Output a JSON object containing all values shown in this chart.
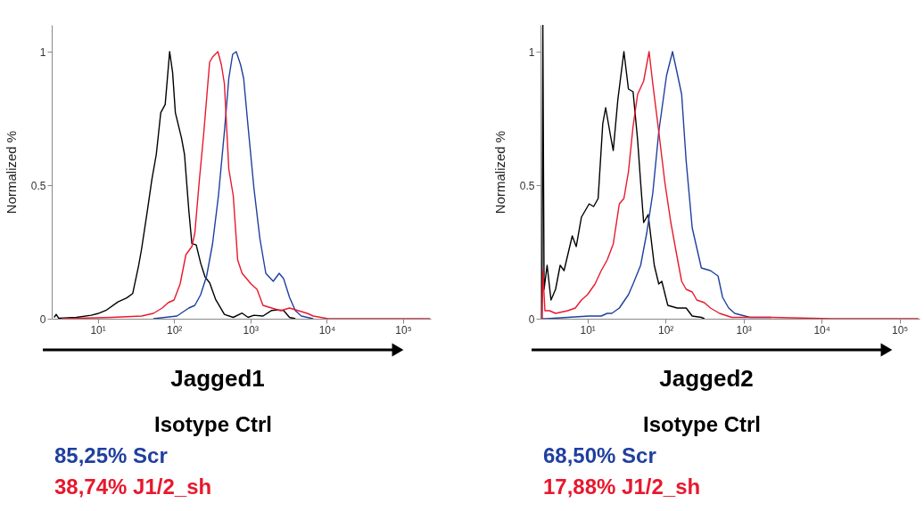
{
  "chart_data": [
    {
      "type": "line",
      "xlabel": "Jagged1",
      "ylabel": "Normalized %",
      "log": "x",
      "legend": "bottom",
      "xlim": [
        2.5,
        230000
      ],
      "ylim": [
        0,
        1.1
      ],
      "xticks": [
        {
          "value": 10,
          "label": "10¹"
        },
        {
          "value": 100,
          "label": "10²"
        },
        {
          "value": 1000,
          "label": "10³"
        },
        {
          "value": 10000,
          "label": "10⁴"
        },
        {
          "value": 100000,
          "label": "10⁵"
        }
      ],
      "yticks": [
        0,
        0.5,
        1
      ],
      "series": [
        {
          "name": "Isotype Ctrl",
          "color": "#000000",
          "x": [
            2.69,
            2.86,
            3.08,
            5.26,
            8.22,
            10,
            12.8,
            18.4,
            24.0,
            28.7,
            34.3,
            37.5,
            44.8,
            51.2,
            58.5,
            66.9,
            76.5,
            87.5,
            95.7,
            104,
            125,
            137,
            156,
            171,
            195,
            223,
            255,
            292,
            349,
            456,
            596,
            778,
            931,
            1110,
            1460,
            1900,
            2280,
            2720,
            3250,
            3880
          ],
          "values": [
            0.005,
            0.016,
            0.002,
            0.005,
            0.013,
            0.019,
            0.031,
            0.063,
            0.078,
            0.094,
            0.198,
            0.26,
            0.406,
            0.521,
            0.615,
            0.771,
            0.802,
            1.0,
            0.922,
            0.771,
            0.677,
            0.615,
            0.406,
            0.281,
            0.276,
            0.208,
            0.156,
            0.135,
            0.073,
            0.016,
            0.005,
            0.021,
            0.005,
            0.013,
            0.01,
            0.031,
            0.033,
            0.031,
            0.005,
            0
          ]
        },
        {
          "name": "85,25% Scr",
          "color": "#1f3f9f",
          "x": [
            53.6,
            109,
            156,
            187,
            223,
            267,
            319,
            381,
            456,
            521,
            585,
            651,
            745,
            815,
            931,
            1110,
            1330,
            1590,
            1990,
            2380,
            2720,
            3250,
            3880,
            4650,
            5550,
            6640
          ],
          "values": [
            0,
            0.01,
            0.04,
            0.05,
            0.09,
            0.16,
            0.28,
            0.46,
            0.7,
            0.9,
            0.99,
            1,
            0.95,
            0.9,
            0.72,
            0.49,
            0.3,
            0.17,
            0.14,
            0.17,
            0.15,
            0.08,
            0.03,
            0.01,
            0.005,
            0
          ]
        },
        {
          "name": "38,74% J1/2_sh",
          "color": "#e8182c",
          "x": [
            3.37,
            15.4,
            37.5,
            53.6,
            70.0,
            83.6,
            100,
            120,
            143,
            171,
            187,
            213,
            244,
            292,
            319,
            375,
            417,
            456,
            521,
            596,
            681,
            778,
            1020,
            1220,
            1460,
            1900,
            2480,
            3250,
            4250,
            5550,
            6640,
            10400,
            225000
          ],
          "values": [
            0,
            0.005,
            0.01,
            0.02,
            0.04,
            0.06,
            0.07,
            0.13,
            0.24,
            0.27,
            0.32,
            0.51,
            0.69,
            0.96,
            0.98,
            1,
            0.95,
            0.88,
            0.56,
            0.46,
            0.22,
            0.17,
            0.13,
            0.11,
            0.05,
            0.04,
            0.03,
            0.04,
            0.03,
            0.02,
            0.01,
            0,
            0
          ]
        }
      ]
    },
    {
      "type": "line",
      "xlabel": "Jagged2",
      "ylabel": "Normalized %",
      "log": "x",
      "legend": "bottom",
      "xlim": [
        2.5,
        180000
      ],
      "ylim": [
        0,
        1.1
      ],
      "xticks": [
        {
          "value": 10,
          "label": "10¹"
        },
        {
          "value": 100,
          "label": "10²"
        },
        {
          "value": 1000,
          "label": "10³"
        },
        {
          "value": 10000,
          "label": "10⁴"
        },
        {
          "value": 100000,
          "label": "10⁵"
        }
      ],
      "yticks": [
        0,
        0.5,
        1
      ],
      "series": [
        {
          "name": "Isotype Ctrl",
          "color": "#000000",
          "x": [
            2.61,
            2.68,
            2.78,
            3.04,
            3.41,
            3.9,
            4.47,
            5.01,
            6.38,
            7.18,
            8.36,
            10.5,
            12.0,
            13.7,
            15.7,
            17.1,
            19.6,
            21.4,
            24.5,
            29.3,
            33.5,
            38.4,
            43.9,
            48.0,
            52.5,
            60.0,
            71.8,
            82.0,
            89.7,
            107,
            141,
            184,
            220,
            288,
            315
          ],
          "values": [
            0,
            1.1,
            0.11,
            0.2,
            0.07,
            0.11,
            0.2,
            0.18,
            0.31,
            0.27,
            0.38,
            0.43,
            0.42,
            0.45,
            0.73,
            0.79,
            0.69,
            0.63,
            0.82,
            1.0,
            0.86,
            0.85,
            0.67,
            0.51,
            0.36,
            0.39,
            0.2,
            0.13,
            0.14,
            0.05,
            0.04,
            0.04,
            0.01,
            0.005,
            0
          ]
        },
        {
          "name": "68,50% Scr",
          "color": "#1f3f9f",
          "x": [
            2.61,
            2.98,
            5.58,
            10.5,
            15.0,
            17.9,
            20.5,
            25.6,
            33.5,
            38.4,
            48.0,
            57.4,
            68.7,
            82.0,
            103,
            123,
            141,
            161,
            184,
            220,
            288,
            377,
            471,
            539,
            645,
            771,
            1210,
            2260
          ],
          "values": [
            0,
            0,
            0.005,
            0.01,
            0.01,
            0.02,
            0.02,
            0.04,
            0.09,
            0.13,
            0.2,
            0.32,
            0.47,
            0.7,
            0.91,
            1.0,
            0.92,
            0.84,
            0.59,
            0.34,
            0.19,
            0.18,
            0.16,
            0.08,
            0.04,
            0.02,
            0.005,
            0.005
          ]
        },
        {
          "name": "17,88% J1/2_sh",
          "color": "#e8182c",
          "x": [
            2.61,
            2.68,
            2.85,
            3.26,
            3.9,
            5.58,
            6.99,
            8.36,
            10,
            12.5,
            15.0,
            17.9,
            21.4,
            25.6,
            29.3,
            33.5,
            38.4,
            43.9,
            52.5,
            61.6,
            68.7,
            82.0,
            98.1,
            117,
            141,
            161,
            184,
            220,
            252,
            315,
            377,
            493,
            705,
            2260,
            13600,
            174000
          ],
          "values": [
            0,
            0.18,
            0.03,
            0.03,
            0.02,
            0.03,
            0.04,
            0.07,
            0.09,
            0.13,
            0.18,
            0.22,
            0.28,
            0.43,
            0.45,
            0.55,
            0.72,
            0.84,
            0.89,
            1.0,
            0.88,
            0.7,
            0.51,
            0.36,
            0.23,
            0.14,
            0.11,
            0.1,
            0.07,
            0.06,
            0.04,
            0.02,
            0.005,
            0.005,
            0,
            0
          ]
        }
      ]
    }
  ]
}
